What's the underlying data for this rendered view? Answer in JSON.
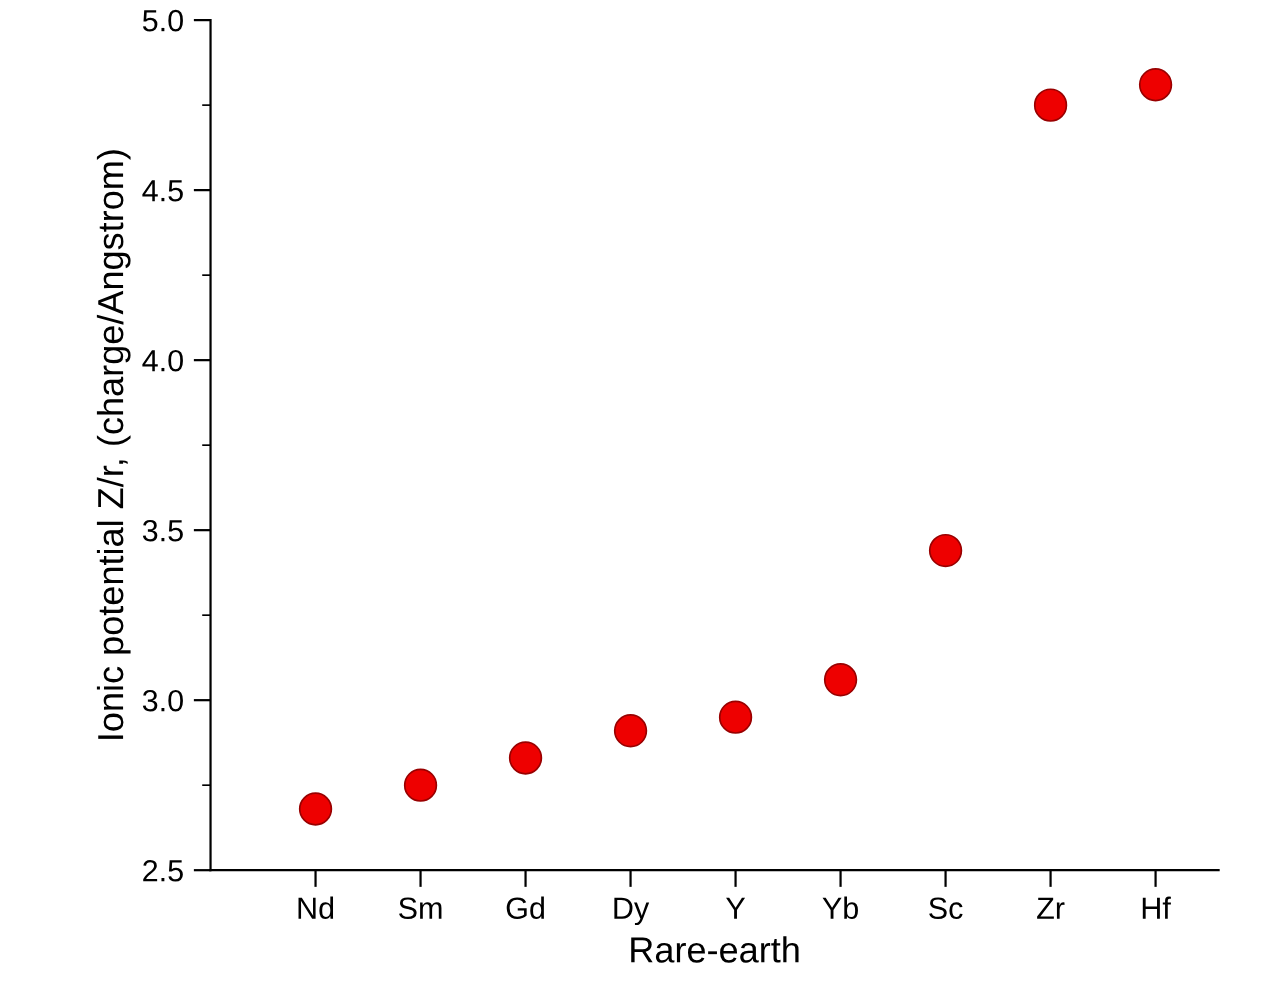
{
  "chart_data": {
    "type": "scatter",
    "xlabel": "Rare-earth",
    "ylabel": "Ionic potential Z/r, (charge/Angstrom)",
    "categories": [
      "Nd",
      "Sm",
      "Gd",
      "Dy",
      "Y",
      "Yb",
      "Sc",
      "Zr",
      "Hf"
    ],
    "series": [
      {
        "color": "#ee0000",
        "values": [
          2.68,
          2.75,
          2.83,
          2.91,
          2.95,
          3.06,
          3.44,
          4.75,
          4.81
        ]
      }
    ],
    "ylim": [
      2.5,
      5.0
    ],
    "yticks": [
      2.5,
      {
        "value": 3,
        "label": "3.0"
      },
      3.5,
      {
        "value": 4,
        "label": "4.0"
      },
      4.5,
      {
        "value": 5,
        "label": "5.0"
      }
    ],
    "marker": "circle",
    "grid": false,
    "legend": false
  }
}
